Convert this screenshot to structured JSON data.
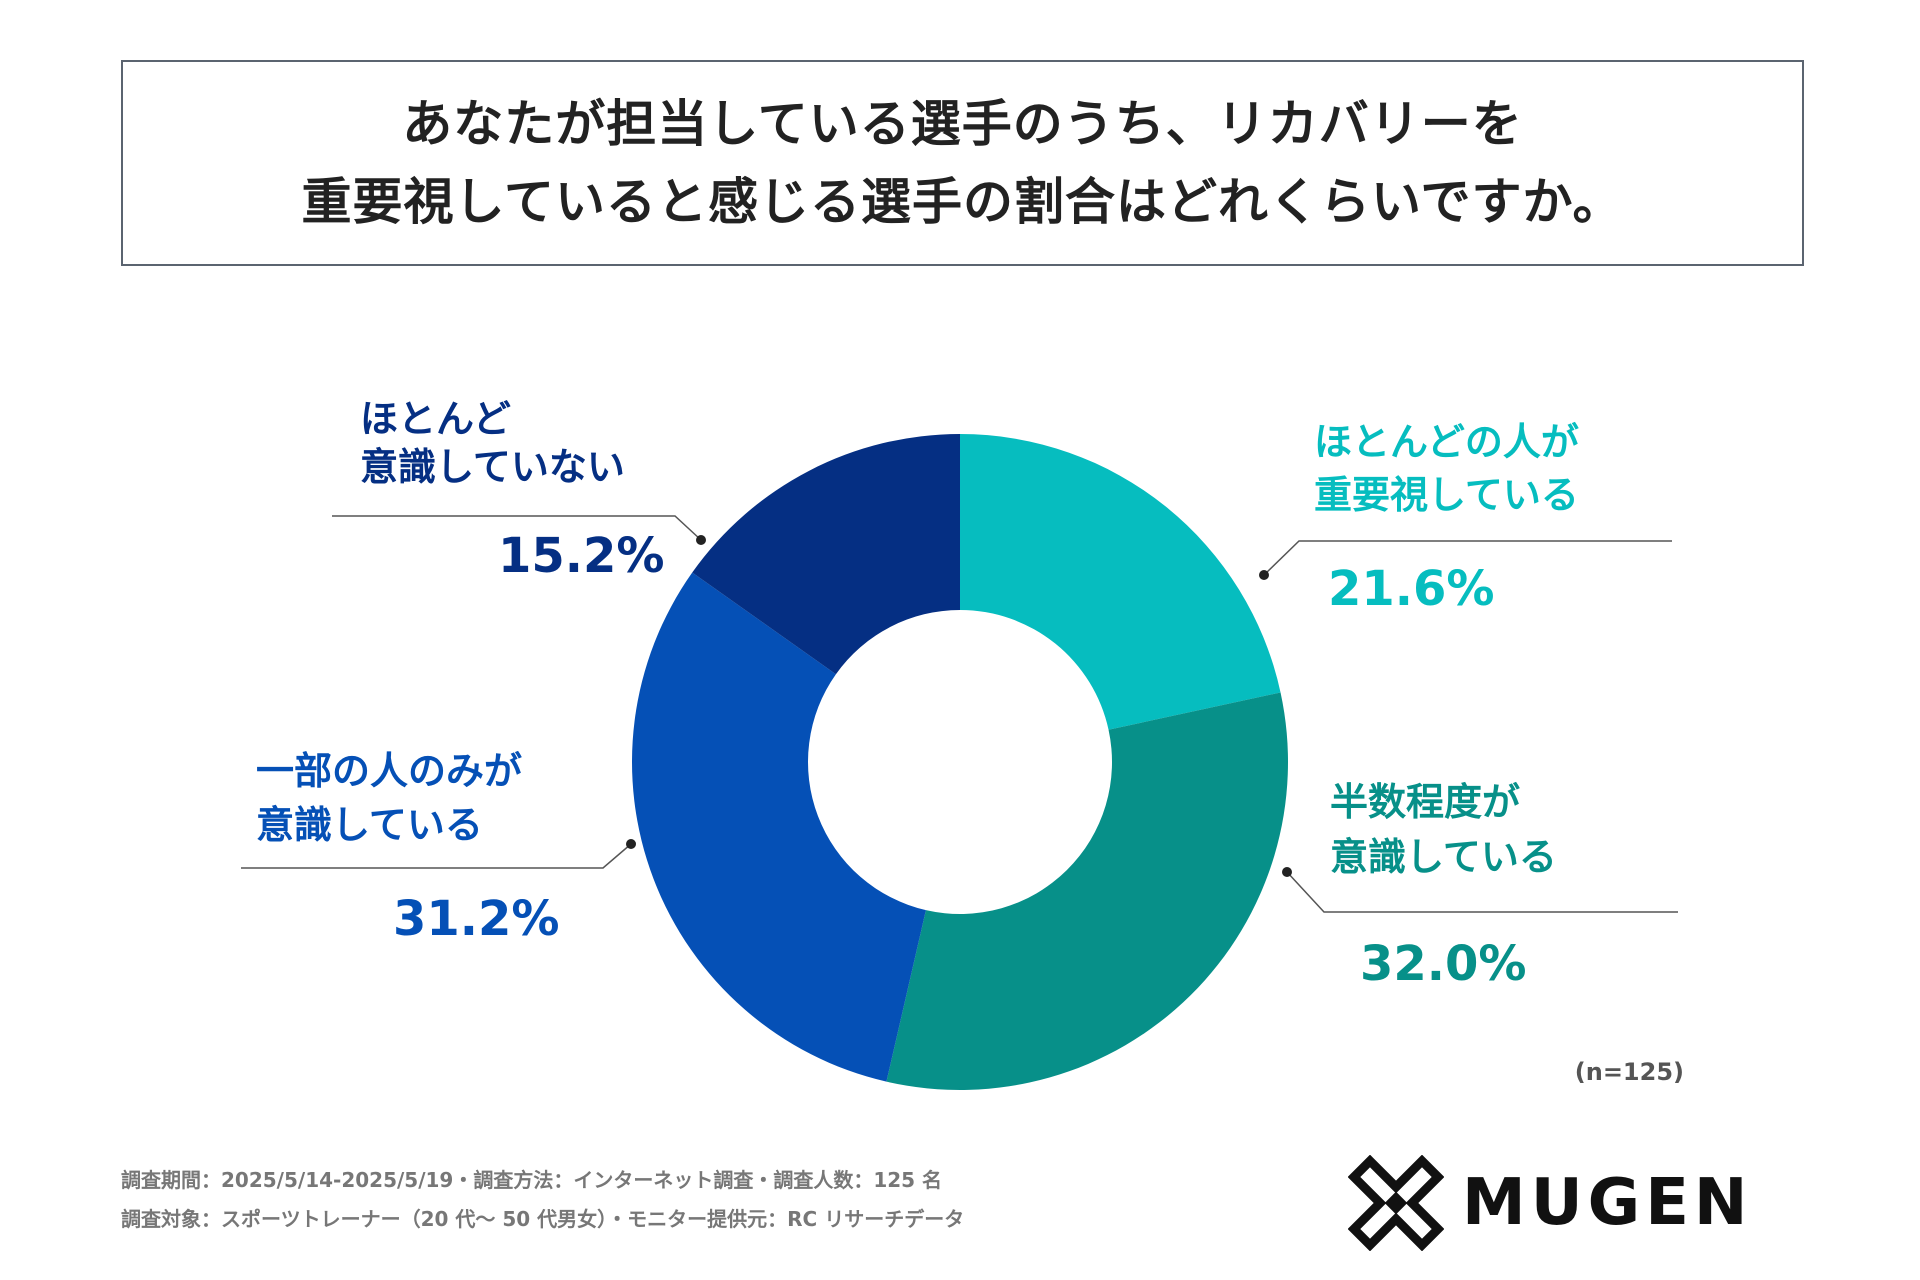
{
  "title": {
    "line1": "あなたが担当している選手のうち、リカバリーを",
    "line2": "重要視していると感じる選手の割合はどれくらいですか。"
  },
  "chart_data": {
    "type": "pie",
    "donut": true,
    "title": "あなたが担当している選手のうち、リカバリーを重要視していると感じる選手の割合はどれくらいですか。",
    "unit": "%",
    "slices": [
      {
        "id": "most",
        "label_lines": [
          "ほとんどの人が",
          "重要視している"
        ],
        "value": 21.6,
        "value_label": "21.6%",
        "color": "#06bdbf"
      },
      {
        "id": "half",
        "label_lines": [
          "半数程度が",
          "意識している"
        ],
        "value": 32.0,
        "value_label": "32.0%",
        "color": "#079089"
      },
      {
        "id": "some",
        "label_lines": [
          "一部の人のみが",
          "意識している"
        ],
        "value": 31.2,
        "value_label": "31.2%",
        "color": "#0550b6"
      },
      {
        "id": "hardly",
        "label_lines": [
          "ほとんど",
          "意識していない"
        ],
        "value": 15.2,
        "value_label": "15.2%",
        "color": "#052f83"
      }
    ],
    "n_label": "(n=125)"
  },
  "footnotes": [
    "調査期間：2025/5/14-2025/5/19・調査方法：インターネット調査・調査人数：125 名",
    "調査対象：スポーツトレーナー（20 代～ 50 代男女）・モニター提供元：RC リサーチデータ"
  ],
  "logo": {
    "text": "MUGEN",
    "icon": "mugen-logo-icon"
  }
}
